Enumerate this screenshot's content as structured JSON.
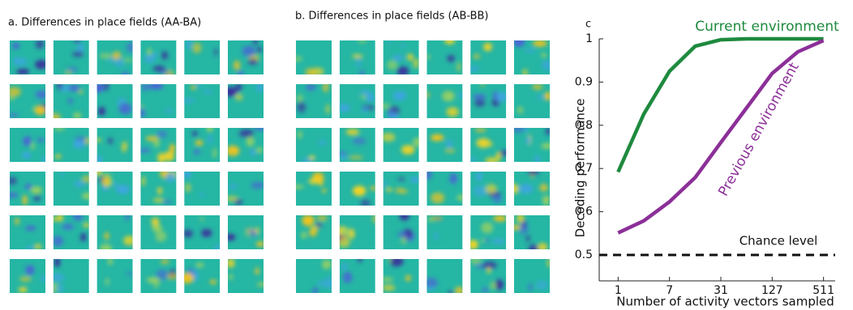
{
  "panels": [
    {
      "title": "a. Differences in place fields (AA-BA)"
    },
    {
      "title": "b. Differences in place fields (AB-BB)"
    }
  ],
  "chart_data": {
    "type": "line",
    "panel_label": "c",
    "x": [
      1,
      3,
      7,
      15,
      31,
      63,
      127,
      255,
      511
    ],
    "xscale": "log-plus-one",
    "series": [
      {
        "name": "Current environment",
        "color": "#1e8a3e",
        "values": [
          0.692,
          0.826,
          0.925,
          0.983,
          0.998,
          1.0,
          1.0,
          1.0,
          1.0
        ]
      },
      {
        "name": "Previous environment",
        "color": "#8c2f98",
        "values": [
          0.551,
          0.579,
          0.623,
          0.679,
          0.76,
          0.84,
          0.92,
          0.97,
          0.996
        ]
      }
    ],
    "chance_level": 0.5,
    "chance_label": "Chance level",
    "xlabel": "Number of activity vectors sampled",
    "ylabel": "Decoding performance",
    "xlim": [
      0.2,
      700
    ],
    "ylim": [
      0.44,
      1.0
    ],
    "xticks": [
      1,
      7,
      31,
      127,
      511
    ],
    "yticks": [
      0.5,
      0.6,
      0.7,
      0.8,
      0.9,
      1
    ]
  }
}
